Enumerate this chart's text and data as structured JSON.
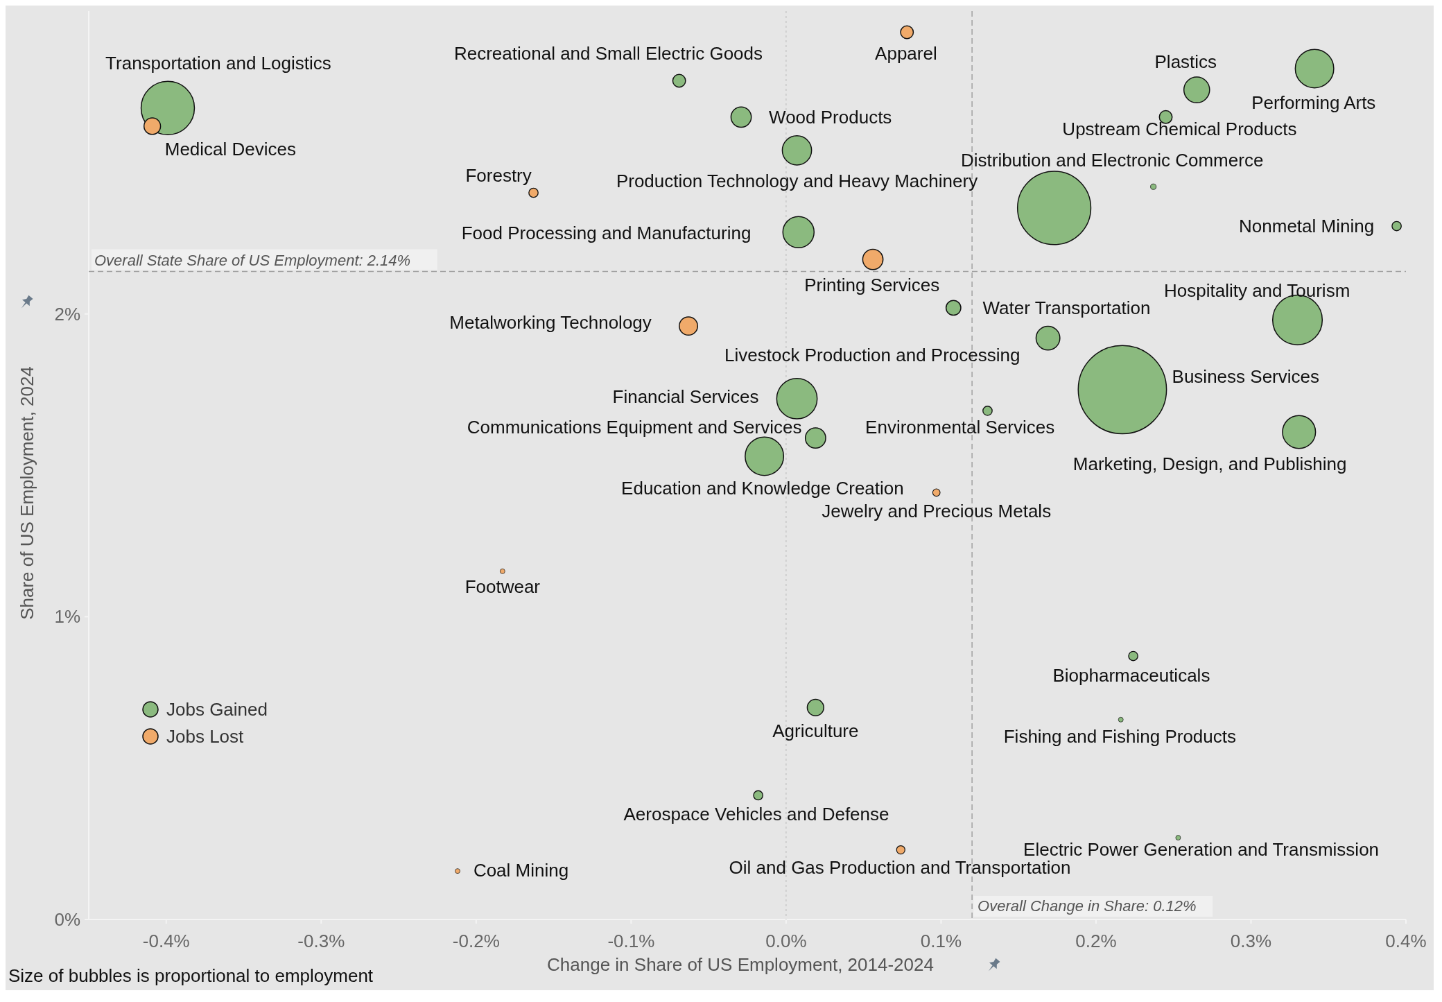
{
  "chart_data": {
    "type": "bubble",
    "xlabel": "Change in Share of US Employment, 2014-2024",
    "ylabel": "Share of US Employment, 2024",
    "xlim": [
      -0.45,
      0.4
    ],
    "ylim": [
      0,
      3.0
    ],
    "xticks": [
      {
        "value": -0.4,
        "label": "-0.4%"
      },
      {
        "value": -0.3,
        "label": "-0.3%"
      },
      {
        "value": -0.2,
        "label": "-0.2%"
      },
      {
        "value": -0.1,
        "label": "-0.1%"
      },
      {
        "value": 0,
        "label": "0.0%"
      },
      {
        "value": 0.1,
        "label": "0.1%"
      },
      {
        "value": 0.2,
        "label": "0.2%"
      },
      {
        "value": 0.3,
        "label": "0.3%"
      },
      {
        "value": 0.4,
        "label": "0.4%"
      }
    ],
    "yticks": [
      {
        "value": 0,
        "label": "0%"
      },
      {
        "value": 1,
        "label": "1%"
      },
      {
        "value": 2,
        "label": "2%"
      }
    ],
    "legend": "bottom left",
    "grid": false,
    "marker": "circle",
    "series": [
      {
        "name": "Jobs Gained",
        "color": "#8bba7f",
        "x": [
          -0.399,
          -0.069,
          -0.029,
          0.007,
          0.008,
          0.265,
          0.341,
          0.245,
          0.173,
          0.237,
          0.394,
          0.33,
          0.108,
          0.169,
          0.217,
          0.007,
          0.019,
          -0.014,
          0.13,
          0.331,
          0.224,
          0.019,
          0.216,
          -0.018,
          0.253
        ],
        "values": [
          2.68,
          2.77,
          2.65,
          2.54,
          2.27,
          2.74,
          2.81,
          2.65,
          2.35,
          2.42,
          2.29,
          1.98,
          2.02,
          1.92,
          1.75,
          1.72,
          1.59,
          1.53,
          1.68,
          1.61,
          0.87,
          0.7,
          0.66,
          0.41,
          0.27
        ],
        "sizes": [
          0.365,
          0.021,
          0.053,
          0.11,
          0.125,
          0.085,
          0.19,
          0.021,
          0.69,
          0.004,
          0.011,
          0.316,
          0.028,
          0.073,
          1,
          0.21,
          0.053,
          0.19,
          0.011,
          0.14,
          0.011,
          0.035,
          0.003,
          0.011,
          0.002
        ]
      },
      {
        "name": "Jobs Lost",
        "color": "#f0aa6a",
        "x": [
          -0.409,
          0.078,
          -0.163,
          0.056,
          -0.063,
          0.097,
          -0.183,
          0.074,
          -0.212
        ],
        "values": [
          2.62,
          2.93,
          2.4,
          2.18,
          1.96,
          1.41,
          1.15,
          0.23,
          0.16
        ],
        "sizes": [
          0.035,
          0.021,
          0.011,
          0.053,
          0.043,
          0.007,
          0.003,
          0.009,
          0.002
        ]
      }
    ],
    "ref_lines": [
      {
        "axis": "y",
        "value": 2.14,
        "label": "Overall State Share of US Employment: 2.14%",
        "color": "#a0a0a0",
        "line_style": "dashed"
      },
      {
        "axis": "x",
        "value": 0.12,
        "label": "Overall Change in Share: 0.12%",
        "color": "#a0a0a0",
        "line_style": "dashed"
      },
      {
        "axis": "x",
        "value": 0,
        "color": "#c8c8c8",
        "line_style": "dotted"
      }
    ],
    "annotations": [
      {
        "text": "Transportation and Logistics",
        "x": -0.399,
        "y": 2.68
      },
      {
        "text": "Medical Devices",
        "x": -0.409,
        "y": 2.62
      },
      {
        "text": "Recreational and Small Electric Goods",
        "x": -0.069,
        "y": 2.77
      },
      {
        "text": "Apparel",
        "x": 0.078,
        "y": 2.93
      },
      {
        "text": "Wood Products",
        "x": -0.029,
        "y": 2.65
      },
      {
        "text": "Production Technology and Heavy Machinery",
        "x": 0.007,
        "y": 2.54
      },
      {
        "text": "Forestry",
        "x": -0.163,
        "y": 2.4
      },
      {
        "text": "Food Processing and Manufacturing",
        "x": 0.008,
        "y": 2.27
      },
      {
        "text": "Printing Services",
        "x": 0.056,
        "y": 2.18
      },
      {
        "text": "Plastics",
        "x": 0.265,
        "y": 2.74
      },
      {
        "text": "Performing Arts",
        "x": 0.341,
        "y": 2.81
      },
      {
        "text": "Upstream Chemical Products",
        "x": 0.245,
        "y": 2.65
      },
      {
        "text": "Distribution and Electronic Commerce",
        "x": 0.173,
        "y": 2.35
      },
      {
        "text": "Nonmetal Mining",
        "x": 0.394,
        "y": 2.29
      },
      {
        "text": "Hospitality and Tourism",
        "x": 0.33,
        "y": 1.98
      },
      {
        "text": "Water Transportation",
        "x": 0.108,
        "y": 2.02
      },
      {
        "text": "Metalworking Technology",
        "x": -0.063,
        "y": 1.96
      },
      {
        "text": "Livestock Production and Processing",
        "x": 0.169,
        "y": 1.92
      },
      {
        "text": "Business Services",
        "x": 0.217,
        "y": 1.75
      },
      {
        "text": "Financial Services",
        "x": 0.007,
        "y": 1.72
      },
      {
        "text": "Communications Equipment and Services",
        "x": 0.019,
        "y": 1.59
      },
      {
        "text": "Education and Knowledge Creation",
        "x": -0.014,
        "y": 1.53
      },
      {
        "text": "Environmental Services",
        "x": 0.13,
        "y": 1.68
      },
      {
        "text": "Marketing, Design, and Publishing",
        "x": 0.331,
        "y": 1.61
      },
      {
        "text": "Jewelry and Precious Metals",
        "x": 0.097,
        "y": 1.41
      },
      {
        "text": "Footwear",
        "x": -0.183,
        "y": 1.15
      },
      {
        "text": "Biopharmaceuticals",
        "x": 0.224,
        "y": 0.87
      },
      {
        "text": "Agriculture",
        "x": 0.019,
        "y": 0.7
      },
      {
        "text": "Fishing and Fishing Products",
        "x": 0.216,
        "y": 0.66
      },
      {
        "text": "Aerospace Vehicles and Defense",
        "x": -0.018,
        "y": 0.41
      },
      {
        "text": "Electric Power Generation and Transmission",
        "x": 0.253,
        "y": 0.27
      },
      {
        "text": "Oil and Gas Production and Transportation",
        "x": 0.074,
        "y": 0.23
      },
      {
        "text": "Coal Mining",
        "x": -0.212,
        "y": 0.16
      },
      "Size of bubbles is proportional to employment"
    ]
  }
}
